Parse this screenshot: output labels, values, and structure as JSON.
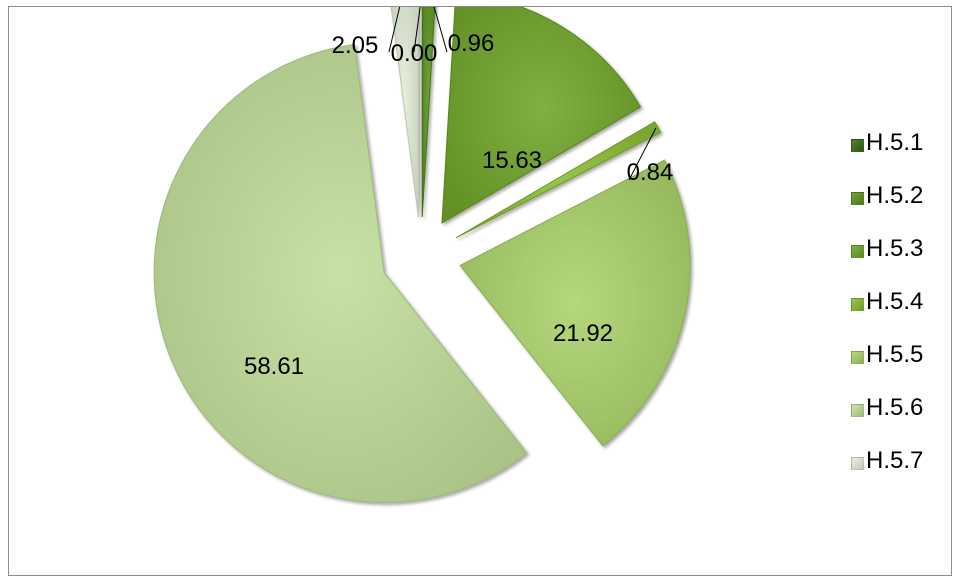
{
  "chart_data": {
    "type": "pie",
    "style": "exploded",
    "categories": [
      "H.5.1",
      "H.5.2",
      "H.5.3",
      "H.5.4",
      "H.5.5",
      "H.5.6",
      "H.5.7"
    ],
    "values": [
      0.0,
      0.96,
      15.63,
      0.84,
      21.92,
      58.61,
      2.05
    ],
    "data_labels": [
      "0.00",
      "0.96",
      "15.63",
      "0.84",
      "21.92",
      "58.61",
      "2.05"
    ],
    "colors": [
      "#3f6a20",
      "#5e8f2a",
      "#6f9d31",
      "#86b23c",
      "#a3c56a",
      "#b6cf93",
      "#d4deca"
    ],
    "legend_position": "right",
    "title": "",
    "grid": false
  }
}
